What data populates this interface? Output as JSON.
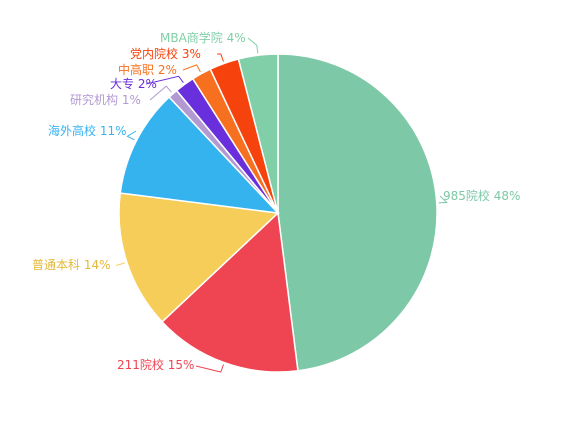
{
  "chart_data": {
    "type": "pie",
    "slices": [
      {
        "label": "985院校",
        "value": 48,
        "text": "985院校 48%",
        "color": "#7dc8a7"
      },
      {
        "label": "211院校",
        "value": 15,
        "text": "211院校 15%",
        "color": "#ef4553"
      },
      {
        "label": "普通本科",
        "value": 14,
        "text": "普通本科 14%",
        "color": "#f6cd59"
      },
      {
        "label": "海外高校",
        "value": 11,
        "text": "海外高校 11%",
        "color": "#35b3ef"
      },
      {
        "label": "研究机构",
        "value": 1,
        "text": "研究机构 1%",
        "color": "#b29ad1"
      },
      {
        "label": "大专",
        "value": 2,
        "text": "大专 2%",
        "color": "#6a2fdc"
      },
      {
        "label": "中高职",
        "value": 2,
        "text": "中高职 2%",
        "color": "#f7701f"
      },
      {
        "label": "党内院校",
        "value": 3,
        "text": "党内院校 3%",
        "color": "#f6420c"
      },
      {
        "label": "MBA商学院",
        "value": 4,
        "text": "MBA商学院 4%",
        "color": "#80cfa8"
      }
    ],
    "start": "12 o'clock",
    "direction": "clockwise",
    "legend": "none"
  }
}
